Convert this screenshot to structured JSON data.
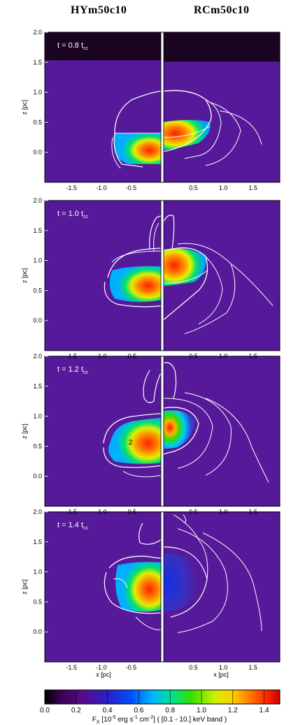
{
  "columns": {
    "left_title": "HYm50c10",
    "right_title": "RCm50c10"
  },
  "panels": [
    {
      "time_label": "t = 0.8 t",
      "time_sub": "cc"
    },
    {
      "time_label": "t = 1.0 t",
      "time_sub": "cc"
    },
    {
      "time_label": "t = 1.2 t",
      "time_sub": "cc",
      "contour_label": "2"
    },
    {
      "time_label": "t = 1.4 t",
      "time_sub": "cc"
    }
  ],
  "axes": {
    "zlabel": "z [pc]",
    "xlabel": "x [pc]",
    "ticks_y": [
      "2.0",
      "1.5",
      "1.0",
      "0.5",
      "0.0"
    ],
    "ticks_x_left": [
      "-1.5",
      "-1.0",
      "-0.5"
    ],
    "ticks_x_right": [
      "0.5",
      "1.0",
      "1.5"
    ]
  },
  "colorbar": {
    "ticks": [
      "0.0",
      "0.2",
      "0.4",
      "0.6",
      "0.8",
      "1.0",
      "1.2",
      "1.4"
    ],
    "label": "F",
    "label_sub": "X",
    "label_rest": " [10",
    "label_exp1": "-5",
    "label_rest2": " erg s",
    "label_exp2": "-1",
    "label_rest3": " cm",
    "label_exp3": "-2",
    "label_rest4": "] ( [0.1 - 10.] keV band )",
    "range": [
      0.0,
      1.5
    ],
    "colormap": [
      "#000000",
      "#3a0050",
      "#5a0a8c",
      "#2a20c8",
      "#0050ff",
      "#00b8ff",
      "#00e090",
      "#30e000",
      "#c8f000",
      "#ffd000",
      "#ff7000",
      "#ff2000",
      "#c80000"
    ]
  },
  "colors": {
    "background_purple": "#55199a",
    "contour": "#ffffff",
    "top_band": "#1a0422"
  }
}
